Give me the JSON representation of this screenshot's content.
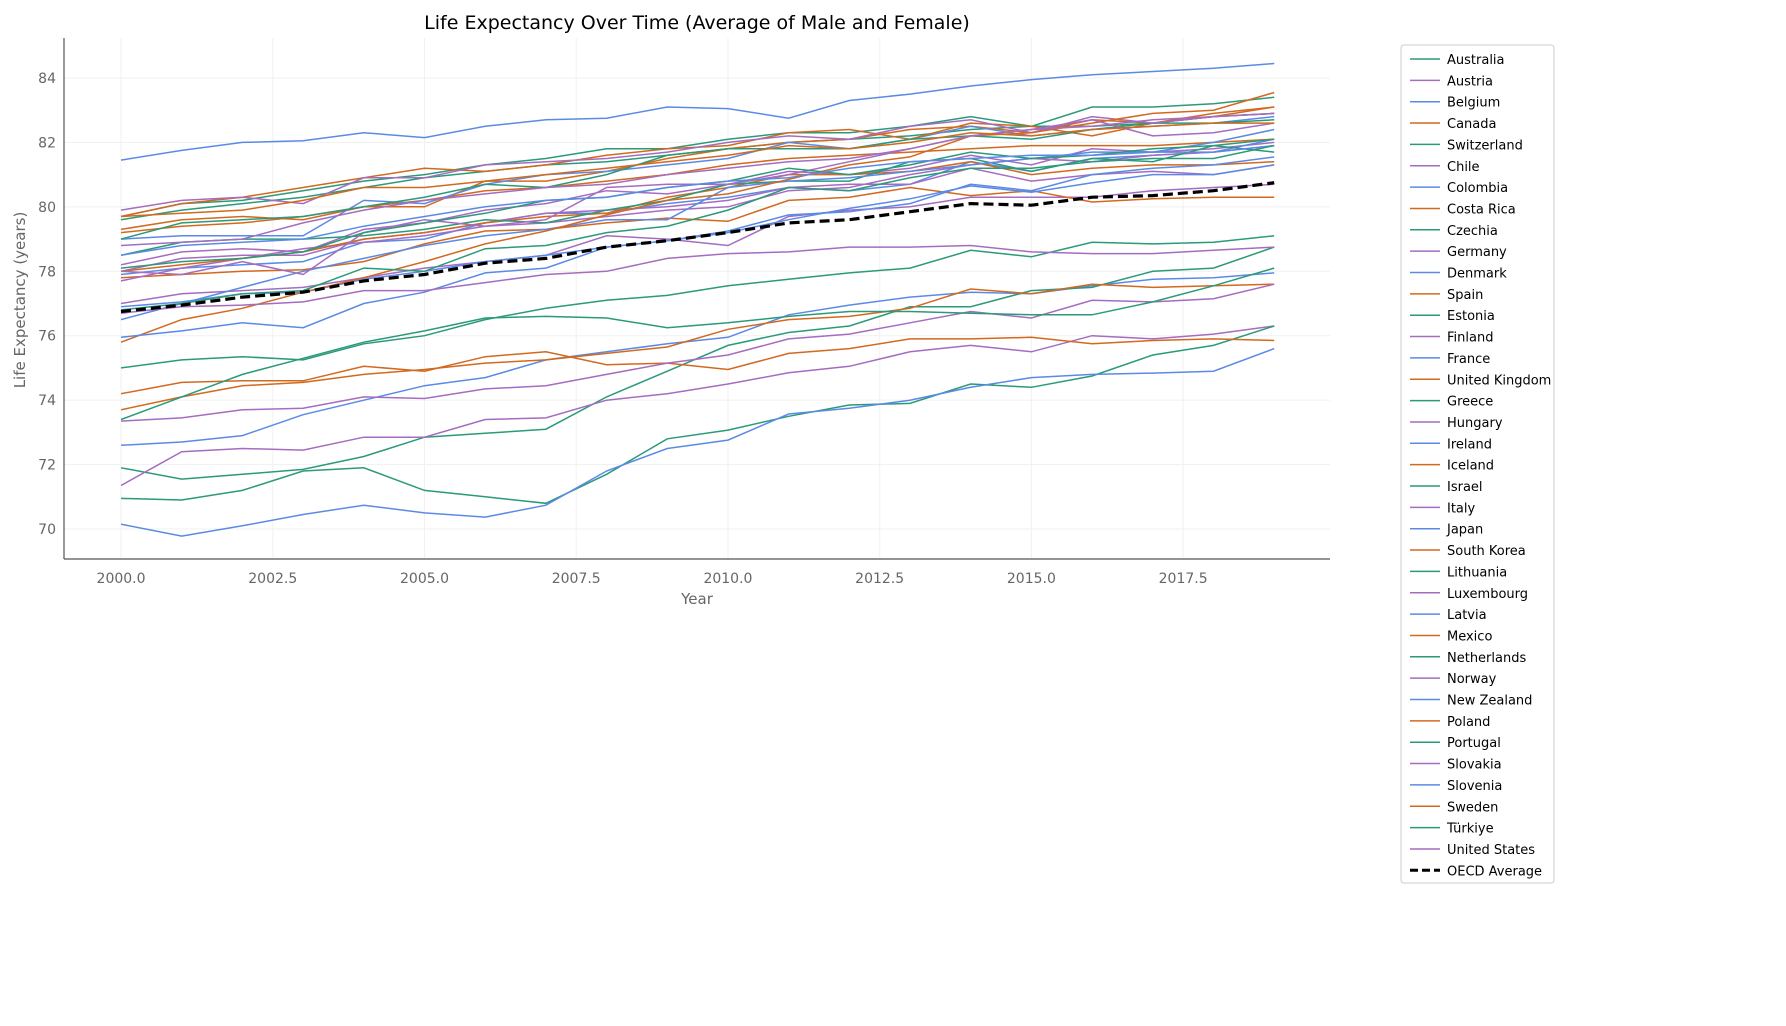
{
  "chart_data": {
    "type": "line",
    "title": "Life Expectancy Over Time (Average of Male and Female)",
    "xlabel": "Year",
    "ylabel": "Life Expectancy (years)",
    "xlim": [
      1999.06,
      2019.92
    ],
    "ylim": [
      69.07,
      85.24
    ],
    "xticks": [
      2000.0,
      2002.5,
      2005.0,
      2007.5,
      2010.0,
      2012.5,
      2015.0,
      2017.5
    ],
    "xtick_labels": [
      "2000.0",
      "2002.5",
      "2005.0",
      "2007.5",
      "2010.0",
      "2012.5",
      "2015.0",
      "2017.5"
    ],
    "yticks": [
      70,
      72,
      74,
      76,
      78,
      80,
      82,
      84
    ],
    "ytick_labels": [
      "70",
      "72",
      "74",
      "76",
      "78",
      "80",
      "82",
      "84"
    ],
    "grid": true,
    "legend_position": "outside-right",
    "palette": [
      "#2a9a7a",
      "#a56cc1",
      "#5b8ae6",
      "#d2691e"
    ],
    "x": [
      2000,
      2001,
      2002,
      2003,
      2004,
      2005,
      2006,
      2007,
      2008,
      2009,
      2010,
      2011,
      2012,
      2013,
      2014,
      2015,
      2016,
      2017,
      2018,
      2019
    ],
    "series": [
      {
        "name": "Australia",
        "values": [
          79.6,
          79.9,
          80.1,
          80.3,
          80.6,
          80.9,
          81.1,
          81.3,
          81.4,
          81.6,
          81.8,
          82.0,
          82.1,
          82.2,
          82.4,
          82.5,
          82.5,
          82.6,
          82.8,
          82.9
        ]
      },
      {
        "name": "Austria",
        "values": [
          78.2,
          78.6,
          78.7,
          78.6,
          79.3,
          79.5,
          79.9,
          80.1,
          80.5,
          80.4,
          80.7,
          81.1,
          81.0,
          81.2,
          81.6,
          81.3,
          81.8,
          81.7,
          81.8,
          82.0
        ]
      },
      {
        "name": "Belgium",
        "values": [
          77.9,
          78.1,
          78.2,
          78.3,
          78.9,
          79.0,
          79.5,
          79.8,
          79.8,
          80.1,
          80.3,
          80.6,
          80.5,
          80.7,
          81.4,
          81.1,
          81.5,
          81.6,
          81.7,
          82.1
        ]
      },
      {
        "name": "Canada",
        "values": [
          79.2,
          79.4,
          79.5,
          79.7,
          80.0,
          80.2,
          80.5,
          80.6,
          80.8,
          81.0,
          81.3,
          81.5,
          81.6,
          81.7,
          81.8,
          81.9,
          81.9,
          81.9,
          82.0,
          82.1
        ]
      },
      {
        "name": "Switzerland",
        "values": [
          79.7,
          80.1,
          80.2,
          80.5,
          80.8,
          81.0,
          81.3,
          81.5,
          81.8,
          81.8,
          82.1,
          82.3,
          82.3,
          82.5,
          82.8,
          82.5,
          83.1,
          83.1,
          83.2,
          83.4
        ]
      },
      {
        "name": "Chile",
        "values": [
          77.0,
          77.3,
          77.4,
          77.5,
          77.8,
          78.1,
          78.3,
          78.5,
          79.1,
          79.0,
          78.8,
          79.7,
          79.9,
          80.0,
          80.3,
          80.3,
          80.3,
          80.5,
          80.6,
          80.7
        ]
      },
      {
        "name": "Colombia",
        "values": [
          72.6,
          72.7,
          72.9,
          73.55,
          74.0,
          74.45,
          74.7,
          75.25,
          75.5,
          75.75,
          75.95,
          76.65,
          76.95,
          77.2,
          77.35,
          77.3,
          77.55,
          77.75,
          77.8,
          77.95
        ]
      },
      {
        "name": "Costa Rica",
        "values": [
          77.8,
          77.9,
          78.0,
          78.05,
          78.3,
          78.85,
          79.25,
          79.3,
          79.5,
          79.65,
          79.55,
          80.2,
          80.3,
          80.6,
          80.35,
          80.5,
          80.15,
          80.25,
          80.3,
          80.3
        ]
      },
      {
        "name": "Czechia",
        "values": [
          75.0,
          75.25,
          75.35,
          75.25,
          75.75,
          76.0,
          76.5,
          76.85,
          77.1,
          77.25,
          77.55,
          77.75,
          77.95,
          78.1,
          78.65,
          78.45,
          78.9,
          78.85,
          78.9,
          79.1
        ]
      },
      {
        "name": "Germany",
        "values": [
          78.0,
          78.4,
          78.5,
          78.5,
          79.0,
          79.2,
          79.5,
          79.8,
          79.9,
          80.0,
          80.2,
          80.6,
          80.7,
          80.7,
          81.2,
          80.8,
          81.0,
          81.1,
          81.0,
          81.3
        ]
      },
      {
        "name": "Denmark",
        "values": [
          76.9,
          77.05,
          77.3,
          77.35,
          77.75,
          78.0,
          78.3,
          78.5,
          78.75,
          78.95,
          79.2,
          79.6,
          79.95,
          80.25,
          80.65,
          80.45,
          80.75,
          81.0,
          81.0,
          81.3
        ]
      },
      {
        "name": "Spain",
        "values": [
          79.3,
          79.6,
          79.7,
          79.6,
          80.0,
          80.0,
          80.8,
          80.8,
          81.1,
          81.5,
          81.8,
          82.0,
          82.1,
          82.4,
          82.5,
          82.3,
          82.7,
          82.6,
          82.8,
          83.1
        ]
      },
      {
        "name": "Estonia",
        "values": [
          71.9,
          71.55,
          71.7,
          71.85,
          72.25,
          72.85,
          72.97,
          73.1,
          74.1,
          74.9,
          75.7,
          76.1,
          76.3,
          76.9,
          76.9,
          77.4,
          77.5,
          78.0,
          78.1,
          78.75
        ]
      },
      {
        "name": "Finland",
        "values": [
          77.7,
          78.1,
          78.4,
          78.7,
          78.9,
          79.1,
          79.4,
          79.5,
          79.7,
          79.9,
          80.0,
          80.5,
          80.6,
          81.0,
          81.3,
          81.5,
          81.4,
          81.6,
          81.7,
          81.9
        ]
      },
      {
        "name": "France",
        "values": [
          79.0,
          79.1,
          79.1,
          79.1,
          80.2,
          80.1,
          80.7,
          81.0,
          81.1,
          81.3,
          81.5,
          82.0,
          81.8,
          82.1,
          82.5,
          82.2,
          82.4,
          82.5,
          82.6,
          82.8
        ]
      },
      {
        "name": "United Kingdom",
        "values": [
          78.0,
          78.2,
          78.4,
          78.6,
          79.0,
          79.2,
          79.5,
          79.7,
          79.8,
          80.3,
          80.6,
          81.0,
          81.0,
          81.1,
          81.4,
          81.0,
          81.2,
          81.3,
          81.3,
          81.4
        ]
      },
      {
        "name": "Greece",
        "values": [
          78.5,
          78.9,
          79.0,
          79.0,
          79.1,
          79.3,
          79.6,
          79.5,
          79.9,
          80.2,
          80.7,
          80.8,
          80.8,
          81.4,
          81.5,
          81.1,
          81.5,
          81.4,
          81.9,
          81.7
        ]
      },
      {
        "name": "Hungary",
        "values": [
          71.35,
          72.4,
          72.5,
          72.45,
          72.85,
          72.85,
          73.4,
          73.45,
          74.0,
          74.2,
          74.5,
          74.85,
          75.05,
          75.5,
          75.7,
          75.5,
          76.0,
          75.9,
          76.05,
          76.3
        ]
      },
      {
        "name": "Ireland",
        "values": [
          76.5,
          77.0,
          77.5,
          78.0,
          78.4,
          78.8,
          79.1,
          79.3,
          79.6,
          79.6,
          80.6,
          80.8,
          80.9,
          81.1,
          81.3,
          81.5,
          81.7,
          81.7,
          82.0,
          82.4
        ]
      },
      {
        "name": "Iceland",
        "values": [
          79.7,
          80.1,
          80.3,
          80.6,
          80.9,
          81.2,
          81.1,
          81.3,
          81.6,
          81.8,
          81.9,
          82.3,
          82.4,
          82.1,
          82.6,
          82.5,
          82.2,
          82.6,
          82.9,
          83.1
        ]
      },
      {
        "name": "Israel",
        "values": [
          79.0,
          79.5,
          79.6,
          79.7,
          80.0,
          80.3,
          80.7,
          80.6,
          81.0,
          81.6,
          81.8,
          81.8,
          81.8,
          82.1,
          82.2,
          82.1,
          82.4,
          82.6,
          82.6,
          82.7
        ]
      },
      {
        "name": "Italy",
        "values": [
          79.9,
          80.2,
          80.3,
          80.1,
          80.9,
          80.9,
          81.3,
          81.4,
          81.5,
          81.7,
          82.0,
          82.2,
          82.1,
          82.5,
          82.7,
          82.3,
          82.8,
          82.6,
          82.8,
          82.9
        ]
      },
      {
        "name": "Japan",
        "values": [
          81.45,
          81.75,
          82.0,
          82.05,
          82.3,
          82.15,
          82.5,
          82.7,
          82.75,
          83.1,
          83.05,
          82.75,
          83.3,
          83.5,
          83.75,
          83.95,
          84.1,
          84.2,
          84.3,
          84.45
        ]
      },
      {
        "name": "South Korea",
        "values": [
          75.8,
          76.5,
          76.85,
          77.35,
          77.8,
          78.3,
          78.85,
          79.25,
          79.75,
          80.2,
          80.4,
          80.85,
          81.3,
          81.55,
          82.2,
          82.3,
          82.6,
          82.9,
          83.0,
          83.55
        ]
      },
      {
        "name": "Lithuania",
        "values": [
          70.95,
          70.9,
          71.2,
          71.8,
          71.9,
          71.2,
          71.0,
          70.8,
          71.7,
          72.8,
          73.07,
          73.5,
          73.85,
          73.9,
          74.5,
          74.4,
          74.75,
          75.4,
          75.7,
          76.3
        ]
      },
      {
        "name": "Luxembourg",
        "values": [
          78.0,
          77.9,
          78.3,
          77.9,
          79.2,
          79.6,
          79.4,
          79.6,
          80.6,
          80.7,
          80.7,
          81.0,
          81.4,
          81.8,
          82.2,
          82.4,
          82.7,
          82.2,
          82.3,
          82.6
        ]
      },
      {
        "name": "Latvia",
        "values": [
          70.15,
          69.78,
          70.1,
          70.45,
          70.74,
          70.5,
          70.37,
          70.74,
          71.8,
          72.5,
          72.76,
          73.57,
          73.75,
          74.0,
          74.4,
          74.7,
          74.8,
          74.84,
          74.9,
          75.6
        ]
      },
      {
        "name": "Mexico",
        "values": [
          74.2,
          74.55,
          74.6,
          74.6,
          75.05,
          74.9,
          75.35,
          75.5,
          75.1,
          75.15,
          74.95,
          75.45,
          75.6,
          75.9,
          75.9,
          75.95,
          75.75,
          75.85,
          75.9,
          75.85
        ]
      },
      {
        "name": "Netherlands",
        "values": [
          78.1,
          78.3,
          78.4,
          78.6,
          79.2,
          79.5,
          79.8,
          80.2,
          80.3,
          80.6,
          80.8,
          81.2,
          81.0,
          81.3,
          81.7,
          81.5,
          81.6,
          81.8,
          81.9,
          82.1
        ]
      },
      {
        "name": "Norway",
        "values": [
          78.8,
          78.9,
          79.0,
          79.5,
          79.9,
          80.2,
          80.4,
          80.6,
          80.7,
          81.0,
          81.2,
          81.4,
          81.5,
          81.8,
          82.2,
          82.4,
          82.5,
          82.7,
          82.8,
          82.9
        ]
      },
      {
        "name": "New Zealand",
        "values": [
          78.5,
          78.8,
          78.9,
          79.0,
          79.4,
          79.7,
          80.0,
          80.2,
          80.3,
          80.6,
          80.8,
          80.9,
          81.2,
          81.4,
          81.5,
          81.6,
          81.6,
          81.7,
          81.7,
          81.9
        ]
      },
      {
        "name": "Poland",
        "values": [
          73.7,
          74.1,
          74.45,
          74.55,
          74.8,
          74.95,
          75.15,
          75.25,
          75.45,
          75.65,
          76.2,
          76.5,
          76.6,
          76.85,
          77.45,
          77.3,
          77.6,
          77.5,
          77.55,
          77.6
        ]
      },
      {
        "name": "Portugal",
        "values": [
          76.8,
          77.0,
          77.3,
          77.4,
          78.1,
          78.0,
          78.7,
          78.8,
          79.2,
          79.4,
          79.9,
          80.6,
          80.5,
          80.9,
          81.2,
          81.2,
          81.4,
          81.5,
          81.5,
          81.9
        ]
      },
      {
        "name": "Slovakia",
        "values": [
          73.35,
          73.45,
          73.7,
          73.75,
          74.1,
          74.05,
          74.35,
          74.45,
          74.8,
          75.15,
          75.4,
          75.9,
          76.05,
          76.4,
          76.75,
          76.55,
          77.1,
          77.05,
          77.15,
          77.6
        ]
      },
      {
        "name": "Slovenia",
        "values": [
          75.95,
          76.15,
          76.4,
          76.25,
          77.0,
          77.35,
          77.95,
          78.1,
          78.75,
          78.95,
          79.25,
          79.75,
          79.85,
          80.1,
          80.7,
          80.5,
          81.0,
          81.2,
          81.3,
          81.55
        ]
      },
      {
        "name": "Sweden",
        "values": [
          79.7,
          79.8,
          79.9,
          80.2,
          80.6,
          80.6,
          80.8,
          81.0,
          81.2,
          81.4,
          81.6,
          81.9,
          81.8,
          82.0,
          82.3,
          82.2,
          82.4,
          82.5,
          82.6,
          82.6
        ]
      },
      {
        "name": "Türkiye",
        "values": [
          73.4,
          74.1,
          74.8,
          75.3,
          75.8,
          76.15,
          76.55,
          76.6,
          76.55,
          76.25,
          76.4,
          76.6,
          76.75,
          76.75,
          76.7,
          76.65,
          76.65,
          77.05,
          77.55,
          78.1
        ]
      },
      {
        "name": "United States",
        "values": [
          76.7,
          76.9,
          76.95,
          77.05,
          77.4,
          77.4,
          77.65,
          77.9,
          78.0,
          78.4,
          78.55,
          78.6,
          78.75,
          78.75,
          78.8,
          78.6,
          78.55,
          78.55,
          78.65,
          78.75
        ]
      }
    ],
    "average": {
      "name": "OECD Average",
      "color": "#000000",
      "style": "dashed",
      "values": [
        76.75,
        76.95,
        77.2,
        77.35,
        77.7,
        77.9,
        78.25,
        78.4,
        78.75,
        78.95,
        79.2,
        79.5,
        79.6,
        79.85,
        80.1,
        80.05,
        80.3,
        80.35,
        80.5,
        80.75
      ]
    }
  }
}
